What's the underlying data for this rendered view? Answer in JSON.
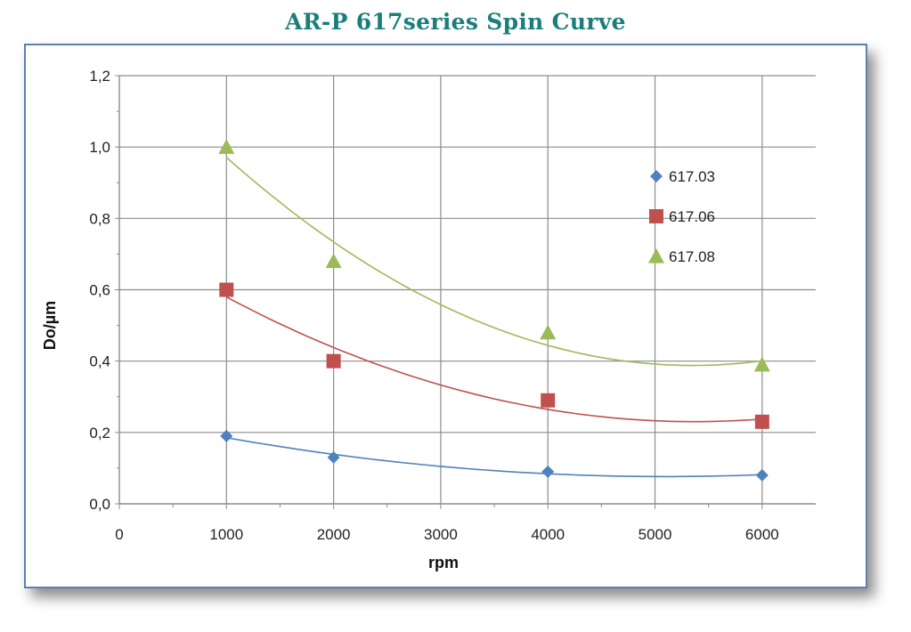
{
  "title": "AR-P 617series Spin Curve",
  "chart_data": {
    "type": "scatter",
    "title": "AR-P 617series Spin Curve",
    "xlabel": "rpm",
    "ylabel": "Do/µm",
    "xlim": [
      0,
      6500
    ],
    "ylim": [
      0,
      1.2
    ],
    "xticks": [
      "0",
      "1000",
      "2000",
      "3000",
      "4000",
      "5000",
      "6000"
    ],
    "yticks": [
      "0,0",
      "0,2",
      "0,4",
      "0,6",
      "0,8",
      "1,0",
      "1,2"
    ],
    "grid": true,
    "legend_position": "right",
    "trendline": "polynomial",
    "series": [
      {
        "name": "617.03",
        "marker": "diamond",
        "color": "#4f81bd",
        "x": [
          1000,
          2000,
          4000,
          6000
        ],
        "y": [
          0.19,
          0.13,
          0.09,
          0.08
        ]
      },
      {
        "name": "617.06",
        "marker": "square",
        "color": "#c0504d",
        "x": [
          1000,
          2000,
          4000,
          6000
        ],
        "y": [
          0.6,
          0.4,
          0.29,
          0.23
        ]
      },
      {
        "name": "617.08",
        "marker": "triangle",
        "color": "#9bbb59",
        "x": [
          1000,
          2000,
          4000,
          6000
        ],
        "y": [
          1.0,
          0.68,
          0.48,
          0.39
        ]
      }
    ]
  }
}
